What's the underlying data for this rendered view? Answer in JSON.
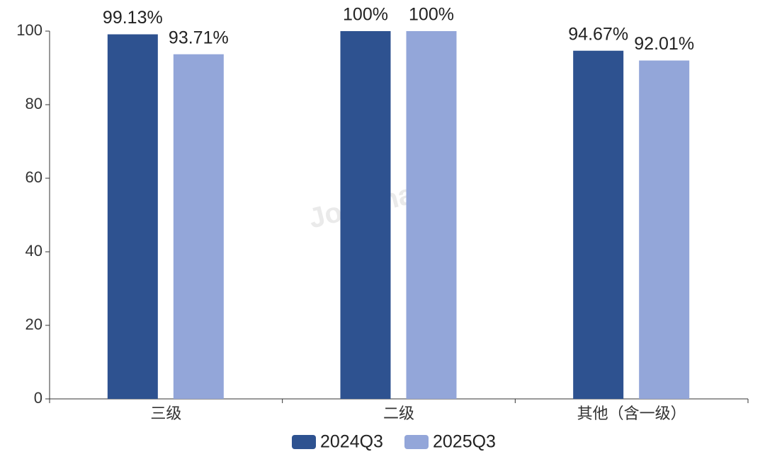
{
  "chart_data": {
    "type": "bar",
    "watermark": "Joinchain",
    "categories": [
      "三级",
      "二级",
      "其他（含一级）"
    ],
    "series": [
      {
        "name": "2024Q3",
        "color": "#2e5290",
        "values": [
          99.13,
          100,
          94.67
        ],
        "value_labels": [
          "99.13%",
          "100%",
          "94.67%"
        ]
      },
      {
        "name": "2025Q3",
        "color": "#93a6d9",
        "values": [
          93.71,
          100,
          92.01
        ],
        "value_labels": [
          "93.71%",
          "100%",
          "92.01%"
        ]
      }
    ],
    "ylim": [
      0,
      100
    ],
    "yticks": [
      0,
      20,
      40,
      60,
      80,
      100
    ],
    "grid": false
  }
}
